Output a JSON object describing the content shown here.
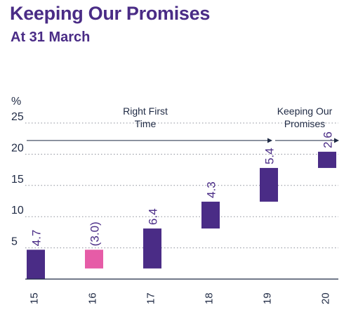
{
  "chart_data": {
    "type": "waterfall-bar",
    "title": "Keeping Our Promises",
    "subtitle": "At 31 March",
    "ylabel": "%",
    "ylim": [
      0,
      25
    ],
    "yticks": [
      5,
      10,
      15,
      20,
      25
    ],
    "grid": "dotted-horizontal",
    "categories": [
      "15",
      "16",
      "17",
      "18",
      "19",
      "20"
    ],
    "values": [
      4.7,
      -3.0,
      6.4,
      4.3,
      5.4,
      2.6
    ],
    "value_labels": [
      "4.7",
      "(3.0)",
      "6.4",
      "4.3",
      "5.4",
      "2.6"
    ],
    "bar_ranges": [
      [
        0,
        4.7
      ],
      [
        1.7,
        4.7
      ],
      [
        1.7,
        8.1
      ],
      [
        8.1,
        12.4
      ],
      [
        12.4,
        17.8
      ],
      [
        17.8,
        20.4
      ]
    ],
    "annotations": [
      {
        "text_lines": [
          "Right First",
          "Time"
        ],
        "spans_categories": [
          "15",
          "19"
        ]
      },
      {
        "text_lines": [
          "Keeping Our",
          "Promises"
        ],
        "spans_categories": [
          "19",
          "20"
        ]
      }
    ],
    "colors": {
      "positive": "#4a2c86",
      "negative": "#e65ca7",
      "text": "#1f2a44",
      "title": "#4a2c86"
    }
  }
}
